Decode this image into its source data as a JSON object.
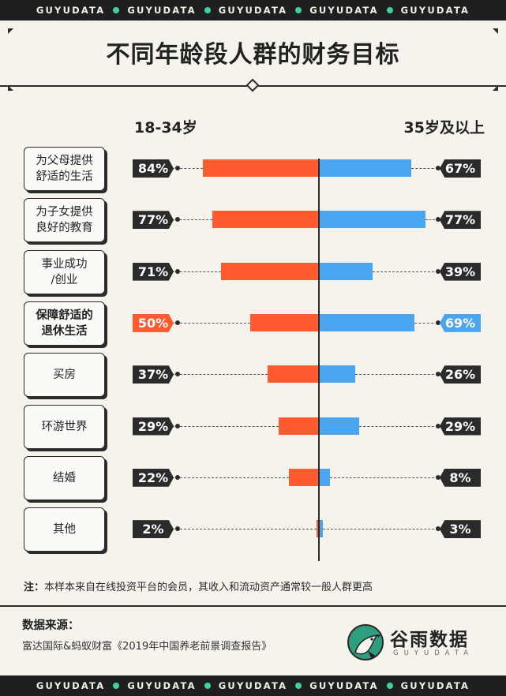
{
  "header": {
    "repeat_text": "GUYUDATA",
    "repeat_count": 5,
    "title": "不同年龄段人群的财务目标"
  },
  "chart_data": {
    "type": "bar",
    "orientation": "horizontal-diverging",
    "series": [
      {
        "name": "18-34岁",
        "values": [
          84,
          77,
          71,
          50,
          37,
          29,
          22,
          2
        ],
        "color": "#ff5b2e"
      },
      {
        "name": "35岁及以上",
        "values": [
          67,
          77,
          39,
          69,
          26,
          29,
          8,
          3
        ],
        "color": "#4aa6f0"
      }
    ],
    "categories": [
      {
        "line1": "为父母提供",
        "line2": "舒适的生活",
        "highlight": false
      },
      {
        "line1": "为子女提供",
        "line2": "良好的教育",
        "highlight": false
      },
      {
        "line1": "事业成功",
        "line2": "/创业",
        "highlight": false
      },
      {
        "line1": "保障舒适的",
        "line2": "退休生活",
        "highlight": true
      },
      {
        "line1": "买房",
        "line2": "",
        "highlight": false
      },
      {
        "line1": "环游世界",
        "line2": "",
        "highlight": false
      },
      {
        "line1": "结婚",
        "line2": "",
        "highlight": false
      },
      {
        "line1": "其他",
        "line2": "",
        "highlight": false
      }
    ],
    "value_suffix": "%",
    "xlim": [
      0,
      100
    ]
  },
  "note": {
    "prefix": "注：",
    "text": "本样本来自在线投资平台的会员，其收入和流动资产通常较一般人群更高"
  },
  "source": {
    "title": "数据来源：",
    "text": "富达国际&蚂蚁财富《2019年中国养老前景调查报告》"
  },
  "logo": {
    "name": "谷雨数据",
    "sub": "GUYUDATA",
    "color": "#2f9e7e"
  }
}
